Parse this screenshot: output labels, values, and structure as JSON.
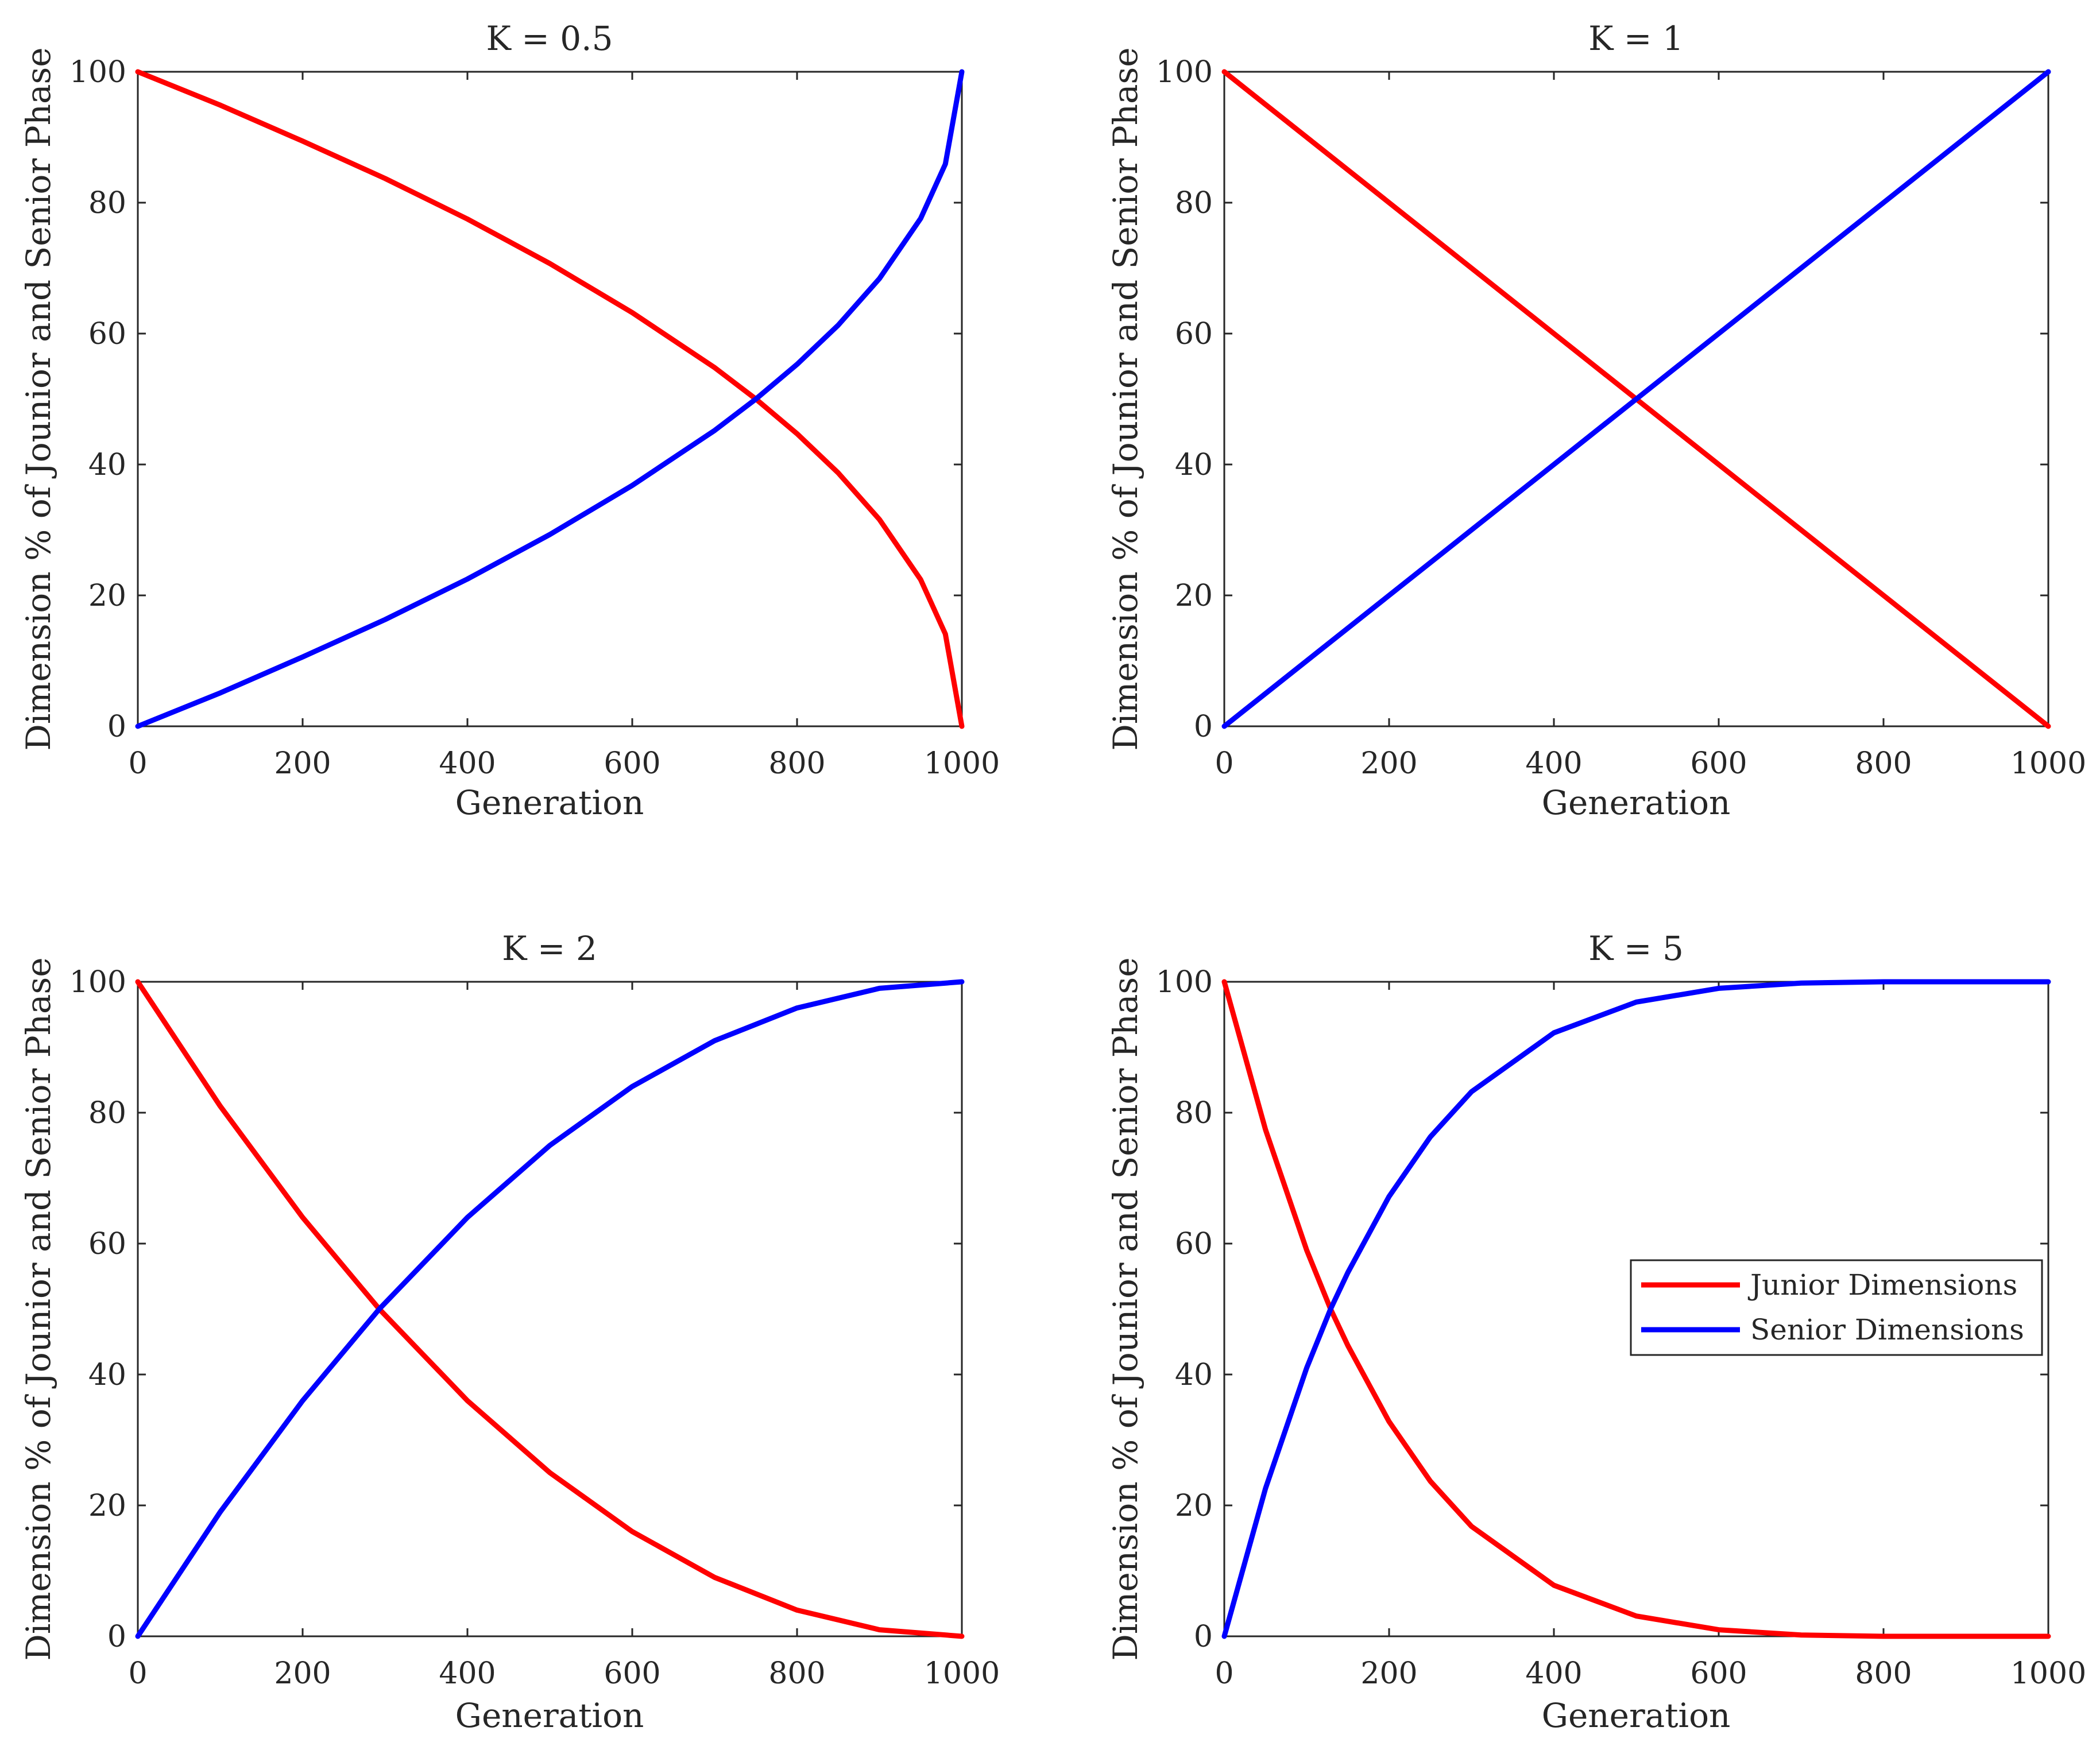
{
  "chart_data": [
    {
      "type": "line",
      "title": "K = 0.5",
      "xlabel": "Generation",
      "ylabel": "Dimension % of Jounior and Senior Phase",
      "xlim": [
        0,
        1000
      ],
      "ylim": [
        0,
        100
      ],
      "xticks": [
        "0",
        "200",
        "400",
        "600",
        "800",
        "1000"
      ],
      "yticks": [
        "0",
        "20",
        "40",
        "60",
        "80",
        "100"
      ],
      "grid": false,
      "series": [
        {
          "name": "Junior Dimensions",
          "color": "#ff0000",
          "x": [
            0,
            100,
            200,
            300,
            400,
            500,
            600,
            700,
            750,
            800,
            850,
            900,
            950,
            980,
            1000
          ],
          "y": [
            100,
            94.9,
            89.4,
            83.7,
            77.5,
            70.7,
            63.2,
            54.8,
            50,
            44.7,
            38.7,
            31.6,
            22.4,
            14.1,
            0
          ]
        },
        {
          "name": "Senior Dimensions",
          "color": "#0000ff",
          "x": [
            0,
            100,
            200,
            300,
            400,
            500,
            600,
            700,
            750,
            800,
            850,
            900,
            950,
            980,
            1000
          ],
          "y": [
            0,
            5.1,
            10.6,
            16.3,
            22.5,
            29.3,
            36.8,
            45.2,
            50,
            55.3,
            61.3,
            68.4,
            77.6,
            85.9,
            100
          ]
        }
      ]
    },
    {
      "type": "line",
      "title": "K = 1",
      "xlabel": "Generation",
      "ylabel": "Dimension % of Jounior and Senior Phase",
      "xlim": [
        0,
        1000
      ],
      "ylim": [
        0,
        100
      ],
      "xticks": [
        "0",
        "200",
        "400",
        "600",
        "800",
        "1000"
      ],
      "yticks": [
        "0",
        "20",
        "40",
        "60",
        "80",
        "100"
      ],
      "grid": false,
      "series": [
        {
          "name": "Junior Dimensions",
          "color": "#ff0000",
          "x": [
            0,
            200,
            400,
            500,
            600,
            800,
            1000
          ],
          "y": [
            100,
            80,
            60,
            50,
            40,
            20,
            0
          ]
        },
        {
          "name": "Senior Dimensions",
          "color": "#0000ff",
          "x": [
            0,
            200,
            400,
            500,
            600,
            800,
            1000
          ],
          "y": [
            0,
            20,
            40,
            50,
            60,
            80,
            100
          ]
        }
      ]
    },
    {
      "type": "line",
      "title": "K = 2",
      "xlabel": "Generation",
      "ylabel": "Dimension % of Jounior and Senior Phase",
      "xlim": [
        0,
        1000
      ],
      "ylim": [
        0,
        100
      ],
      "xticks": [
        "0",
        "200",
        "400",
        "600",
        "800",
        "1000"
      ],
      "yticks": [
        "0",
        "20",
        "40",
        "60",
        "80",
        "100"
      ],
      "grid": false,
      "series": [
        {
          "name": "Junior Dimensions",
          "color": "#ff0000",
          "x": [
            0,
            100,
            200,
            293,
            400,
            500,
            600,
            700,
            800,
            900,
            1000
          ],
          "y": [
            100,
            81,
            64,
            50,
            36,
            25,
            16,
            9,
            4,
            1,
            0
          ]
        },
        {
          "name": "Senior Dimensions",
          "color": "#0000ff",
          "x": [
            0,
            100,
            200,
            293,
            400,
            500,
            600,
            700,
            800,
            900,
            1000
          ],
          "y": [
            0,
            19,
            36,
            50,
            64,
            75,
            84,
            91,
            96,
            99,
            100
          ]
        }
      ]
    },
    {
      "type": "line",
      "title": "K = 5",
      "xlabel": "Generation",
      "ylabel": "Dimension % of Jounior and Senior Phase",
      "xlim": [
        0,
        1000
      ],
      "ylim": [
        0,
        100
      ],
      "xticks": [
        "0",
        "200",
        "400",
        "600",
        "800",
        "1000"
      ],
      "yticks": [
        "0",
        "20",
        "40",
        "60",
        "80",
        "100"
      ],
      "grid": false,
      "legend": {
        "position": "middle-right",
        "entries": [
          "Junior Dimensions",
          "Senior Dimensions"
        ]
      },
      "series": [
        {
          "name": "Junior Dimensions",
          "color": "#ff0000",
          "x": [
            0,
            50,
            100,
            129,
            150,
            200,
            250,
            300,
            400,
            500,
            600,
            700,
            800,
            900,
            1000
          ],
          "y": [
            100,
            77.4,
            59,
            50,
            44.4,
            32.8,
            23.7,
            16.8,
            7.8,
            3.1,
            1,
            0.2,
            0,
            0,
            0
          ]
        },
        {
          "name": "Senior Dimensions",
          "color": "#0000ff",
          "x": [
            0,
            50,
            100,
            129,
            150,
            200,
            250,
            300,
            400,
            500,
            600,
            700,
            800,
            900,
            1000
          ],
          "y": [
            0,
            22.6,
            41,
            50,
            55.6,
            67.2,
            76.3,
            83.2,
            92.2,
            96.9,
            99,
            99.8,
            100,
            100,
            100
          ]
        }
      ]
    }
  ]
}
